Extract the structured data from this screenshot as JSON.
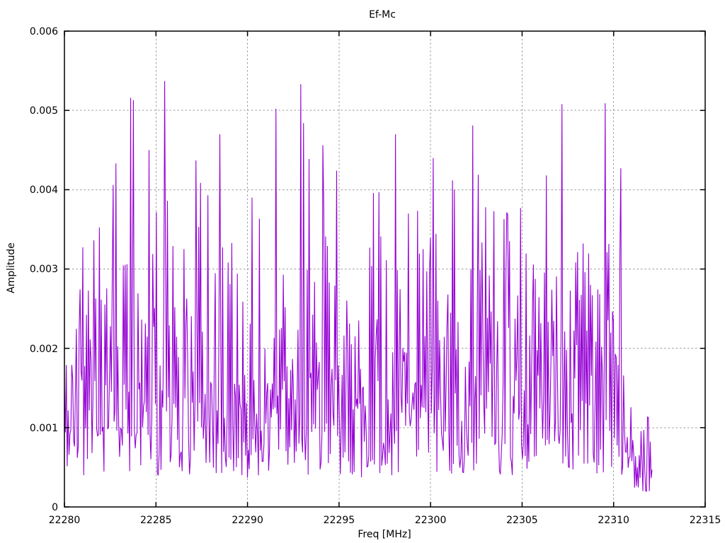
{
  "page": {
    "background": "#ffffff",
    "text_color": "#000000"
  },
  "chart_data": {
    "type": "line",
    "title": "Ef-Mc",
    "xlabel": "Freq [MHz]",
    "ylabel": "Amplitude",
    "xlim": [
      22280,
      22315
    ],
    "ylim": [
      0,
      0.006
    ],
    "grid": true,
    "legend_position": "none",
    "line_color": "#9400d3",
    "grid_color": "#9c9c9c",
    "border_color": "#000000",
    "xticks": [
      {
        "value": 22280,
        "label": "22280"
      },
      {
        "value": 22285,
        "label": "22285"
      },
      {
        "value": 22290,
        "label": "22290"
      },
      {
        "value": 22295,
        "label": "22295"
      },
      {
        "value": 22300,
        "label": "22300"
      },
      {
        "value": 22305,
        "label": "22305"
      },
      {
        "value": 22310,
        "label": "22310"
      },
      {
        "value": 22315,
        "label": "22315"
      }
    ],
    "yticks": [
      {
        "value": 0,
        "label": "0"
      },
      {
        "value": 0.001,
        "label": "0.001"
      },
      {
        "value": 0.002,
        "label": "0.002"
      },
      {
        "value": 0.003,
        "label": "0.003"
      },
      {
        "value": 0.004,
        "label": "0.004"
      },
      {
        "value": 0.005,
        "label": "0.005"
      },
      {
        "value": 0.006,
        "label": "0.006"
      }
    ],
    "data_x_start": 22280,
    "data_x_end": 22312.1,
    "notable_peaks": [
      {
        "x": 22282.67,
        "y": 0.00406
      },
      {
        "x": 22283.6,
        "y": 0.00516
      },
      {
        "x": 22283.75,
        "y": 0.00513
      },
      {
        "x": 22284.6,
        "y": 0.0045
      },
      {
        "x": 22285.49,
        "y": 0.00537
      },
      {
        "x": 22287.2,
        "y": 0.00437
      },
      {
        "x": 22288.5,
        "y": 0.0047
      },
      {
        "x": 22290.25,
        "y": 0.0039
      },
      {
        "x": 22291.55,
        "y": 0.00502
      },
      {
        "x": 22292.9,
        "y": 0.00533
      },
      {
        "x": 22293.05,
        "y": 0.00484
      },
      {
        "x": 22294.1,
        "y": 0.00456
      },
      {
        "x": 22294.85,
        "y": 0.00424
      },
      {
        "x": 22297.2,
        "y": 0.00397
      },
      {
        "x": 22298.06,
        "y": 0.0047
      },
      {
        "x": 22298.8,
        "y": 0.0037
      },
      {
        "x": 22300.15,
        "y": 0.0044
      },
      {
        "x": 22301.3,
        "y": 0.004
      },
      {
        "x": 22302.28,
        "y": 0.00481
      },
      {
        "x": 22302.6,
        "y": 0.00419
      },
      {
        "x": 22303.45,
        "y": 0.00373
      },
      {
        "x": 22304.0,
        "y": 0.00363
      },
      {
        "x": 22304.9,
        "y": 0.00377
      },
      {
        "x": 22306.3,
        "y": 0.00418
      },
      {
        "x": 22307.2,
        "y": 0.00508
      },
      {
        "x": 22309.55,
        "y": 0.00509
      },
      {
        "x": 22310.4,
        "y": 0.00427
      }
    ],
    "generation": {
      "note": "dense noise floor approximated from image; notable_peaks read directly from plot",
      "seed": 7,
      "n_points": 640,
      "base_min": 0.0004,
      "base_span": 0.003,
      "skew": 1.3,
      "mid_spike_prob": 0.24,
      "mid_spike_max": 0.0011,
      "high_spike_prob": 0.045,
      "high_spike_min": 0.0006,
      "high_spike_span": 0.0011,
      "zigzag_factor": 0.42,
      "keep_high_prob": 0.14,
      "clamp_min": 0.0002,
      "clamp_max": 0.0047,
      "regions": [
        {
          "from": 22289.8,
          "to": 22291.3,
          "mult": 0.75
        },
        {
          "from": 22295.3,
          "to": 22296.6,
          "mult": 0.85
        },
        {
          "from": 22310.55,
          "to": 22311.35,
          "mult": 0.6
        },
        {
          "from": 22311.35,
          "to": 22312.1,
          "mult": 0.4
        }
      ]
    }
  }
}
